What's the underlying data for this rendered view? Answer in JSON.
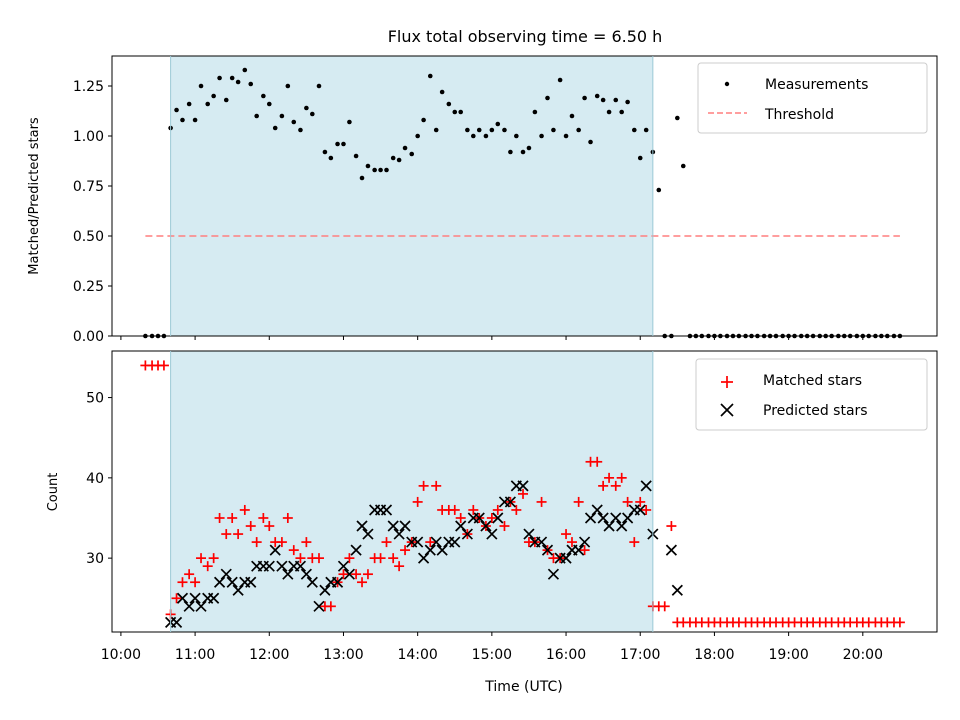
{
  "chart_data": [
    {
      "type": "scatter",
      "title": "Flux total observing time = 6.50 h",
      "ylabel": "Matched/Predicted stars",
      "ylim": [
        0,
        1.4
      ],
      "xlim": [
        9.88,
        21.0
      ],
      "yticks": [
        0.0,
        0.25,
        0.5,
        0.75,
        1.0,
        1.25
      ],
      "ytick_labels": [
        "0.00",
        "0.25",
        "0.50",
        "0.75",
        "1.00",
        "1.25"
      ],
      "legend_position": "top-right",
      "shaded_interval": [
        10.67,
        17.17
      ],
      "shade_color": "#add8e6",
      "series": [
        {
          "name": "Measurements",
          "marker": "dot",
          "color": "#000000",
          "x": [
            10.33,
            10.42,
            10.5,
            10.58,
            10.67,
            10.75,
            10.83,
            10.92,
            11.0,
            11.08,
            11.17,
            11.25,
            11.33,
            11.42,
            11.5,
            11.58,
            11.67,
            11.75,
            11.83,
            11.92,
            12.0,
            12.08,
            12.17,
            12.25,
            12.33,
            12.42,
            12.5,
            12.58,
            12.67,
            12.75,
            12.83,
            12.92,
            13.0,
            13.08,
            13.17,
            13.25,
            13.33,
            13.42,
            13.5,
            13.58,
            13.67,
            13.75,
            13.83,
            13.92,
            14.0,
            14.08,
            14.17,
            14.25,
            14.33,
            14.42,
            14.5,
            14.58,
            14.67,
            14.75,
            14.83,
            14.92,
            15.0,
            15.08,
            15.17,
            15.25,
            15.33,
            15.42,
            15.5,
            15.58,
            15.67,
            15.75,
            15.83,
            15.92,
            16.0,
            16.08,
            16.17,
            16.25,
            16.33,
            16.42,
            16.5,
            16.58,
            16.67,
            16.75,
            16.83,
            16.92,
            17.0,
            17.08,
            17.17,
            17.25,
            17.33,
            17.42,
            17.5,
            17.58,
            17.67,
            17.75,
            17.83,
            17.92,
            18.0,
            18.08,
            18.17,
            18.25,
            18.33,
            18.42,
            18.5,
            18.58,
            18.67,
            18.75,
            18.83,
            18.92,
            19.0,
            19.08,
            19.17,
            19.25,
            19.33,
            19.42,
            19.5,
            19.58,
            19.67,
            19.75,
            19.83,
            19.92,
            20.0,
            20.08,
            20.17,
            20.25,
            20.33,
            20.42,
            20.5
          ],
          "y": [
            0,
            0,
            0,
            0,
            1.04,
            1.13,
            1.08,
            1.16,
            1.08,
            1.25,
            1.16,
            1.2,
            1.29,
            1.18,
            1.29,
            1.27,
            1.33,
            1.26,
            1.1,
            1.2,
            1.16,
            1.04,
            1.1,
            1.25,
            1.07,
            1.03,
            1.14,
            1.11,
            1.25,
            0.92,
            0.89,
            0.96,
            0.96,
            1.07,
            0.9,
            0.79,
            0.85,
            0.83,
            0.83,
            0.83,
            0.89,
            0.88,
            0.94,
            0.91,
            1.0,
            1.08,
            1.3,
            1.03,
            1.22,
            1.16,
            1.12,
            1.12,
            1.03,
            1.0,
            1.03,
            1.0,
            1.03,
            1.06,
            1.03,
            0.92,
            1.0,
            0.92,
            0.94,
            1.12,
            1.0,
            1.19,
            1.03,
            1.28,
            1.0,
            1.1,
            1.03,
            1.19,
            0.97,
            1.2,
            1.18,
            1.12,
            1.18,
            1.12,
            1.17,
            1.03,
            0.89,
            1.03,
            0.92,
            0.73,
            0,
            0,
            1.09,
            0.85,
            0,
            0,
            0,
            0,
            0,
            0,
            0,
            0,
            0,
            0,
            0,
            0,
            0,
            0,
            0,
            0,
            0,
            0,
            0,
            0,
            0,
            0,
            0,
            0,
            0,
            0,
            0,
            0,
            0,
            0,
            0,
            0,
            0,
            0,
            0
          ]
        },
        {
          "name": "Threshold",
          "type": "line",
          "dash": "dashed",
          "color": "#ff7f7f",
          "x": [
            10.33,
            20.5
          ],
          "y": [
            0.5,
            0.5
          ]
        }
      ]
    },
    {
      "type": "scatter",
      "ylabel": "Count",
      "xlabel": "Time (UTC)",
      "ylim": [
        20.8,
        55.8
      ],
      "xlim": [
        9.88,
        21.0
      ],
      "yticks": [
        30,
        40,
        50
      ],
      "ytick_labels": [
        "30",
        "40",
        "50"
      ],
      "xticks": [
        10,
        11,
        12,
        13,
        14,
        15,
        16,
        17,
        18,
        19,
        20
      ],
      "xtick_labels": [
        "10:00",
        "11:00",
        "12:00",
        "13:00",
        "14:00",
        "15:00",
        "16:00",
        "17:00",
        "18:00",
        "19:00",
        "20:00"
      ],
      "legend_position": "top-right",
      "shaded_interval": [
        10.67,
        17.17
      ],
      "shade_color": "#add8e6",
      "series": [
        {
          "name": "Matched stars",
          "marker": "plus",
          "color": "#ff0000",
          "x": [
            10.33,
            10.42,
            10.5,
            10.58,
            10.67,
            10.75,
            10.83,
            10.92,
            11.0,
            11.08,
            11.17,
            11.25,
            11.33,
            11.42,
            11.5,
            11.58,
            11.67,
            11.75,
            11.83,
            11.92,
            12.0,
            12.08,
            12.17,
            12.25,
            12.33,
            12.42,
            12.5,
            12.58,
            12.67,
            12.75,
            12.83,
            12.92,
            13.0,
            13.08,
            13.17,
            13.25,
            13.33,
            13.42,
            13.5,
            13.58,
            13.67,
            13.75,
            13.83,
            13.92,
            14.0,
            14.08,
            14.17,
            14.25,
            14.33,
            14.42,
            14.5,
            14.58,
            14.67,
            14.75,
            14.83,
            14.92,
            15.0,
            15.08,
            15.17,
            15.25,
            15.33,
            15.42,
            15.5,
            15.58,
            15.67,
            15.75,
            15.83,
            15.92,
            16.0,
            16.08,
            16.17,
            16.25,
            16.33,
            16.42,
            16.5,
            16.58,
            16.67,
            16.75,
            16.83,
            16.92,
            17.0,
            17.08,
            17.17,
            17.25,
            17.33,
            17.42,
            17.5,
            17.58,
            17.67,
            17.75,
            17.83,
            17.92,
            18.0,
            18.08,
            18.17,
            18.25,
            18.33,
            18.42,
            18.5,
            18.58,
            18.67,
            18.75,
            18.83,
            18.92,
            19.0,
            19.08,
            19.17,
            19.25,
            19.33,
            19.42,
            19.5,
            19.58,
            19.67,
            19.75,
            19.83,
            19.92,
            20.0,
            20.08,
            20.17,
            20.25,
            20.33,
            20.42,
            20.5
          ],
          "y": [
            54,
            54,
            54,
            54,
            23,
            25,
            27,
            28,
            27,
            30,
            29,
            30,
            35,
            33,
            35,
            33,
            36,
            34,
            32,
            35,
            34,
            32,
            32,
            35,
            31,
            30,
            32,
            30,
            30,
            24,
            24,
            27,
            28,
            30,
            28,
            27,
            28,
            30,
            30,
            32,
            30,
            29,
            31,
            32,
            37,
            39,
            32,
            39,
            36,
            36,
            36,
            35,
            33,
            36,
            35,
            34,
            35,
            36,
            34,
            37,
            36,
            38,
            32,
            32,
            37,
            31,
            30,
            30,
            33,
            32,
            37,
            31,
            42,
            42,
            39,
            40,
            39,
            40,
            37,
            32,
            37,
            36,
            24,
            24,
            24,
            34,
            22,
            22,
            22,
            22,
            22,
            22,
            22,
            22,
            22,
            22,
            22,
            22,
            22,
            22,
            22,
            22,
            22,
            22,
            22,
            22,
            22,
            22,
            22,
            22,
            22,
            22,
            22,
            22,
            22,
            22,
            22,
            22,
            22,
            22,
            22,
            22,
            22
          ]
        },
        {
          "name": "Predicted stars",
          "marker": "x",
          "color": "#000000",
          "x": [
            10.67,
            10.75,
            10.83,
            10.92,
            11.0,
            11.08,
            11.17,
            11.25,
            11.33,
            11.42,
            11.5,
            11.58,
            11.67,
            11.75,
            11.83,
            11.92,
            12.0,
            12.08,
            12.17,
            12.25,
            12.33,
            12.42,
            12.5,
            12.58,
            12.67,
            12.75,
            12.83,
            12.92,
            13.0,
            13.08,
            13.17,
            13.25,
            13.33,
            13.42,
            13.5,
            13.58,
            13.67,
            13.75,
            13.83,
            13.92,
            14.0,
            14.08,
            14.17,
            14.25,
            14.33,
            14.42,
            14.5,
            14.58,
            14.67,
            14.75,
            14.83,
            14.92,
            15.0,
            15.08,
            15.17,
            15.25,
            15.33,
            15.42,
            15.5,
            15.58,
            15.67,
            15.75,
            15.83,
            15.92,
            16.0,
            16.08,
            16.17,
            16.25,
            16.33,
            16.42,
            16.5,
            16.58,
            16.67,
            16.75,
            16.83,
            16.92,
            17.0,
            17.08,
            17.17,
            17.42,
            17.5
          ],
          "y": [
            22,
            22,
            25,
            24,
            25,
            24,
            25,
            25,
            27,
            28,
            27,
            26,
            27,
            27,
            29,
            29,
            29,
            31,
            29,
            28,
            29,
            29,
            28,
            27,
            24,
            26,
            27,
            27,
            29,
            28,
            31,
            34,
            33,
            36,
            36,
            36,
            34,
            33,
            34,
            32,
            32,
            30,
            31,
            32,
            31,
            32,
            32,
            34,
            33,
            35,
            35,
            34,
            33,
            35,
            37,
            37,
            39,
            39,
            33,
            32,
            32,
            31,
            28,
            30,
            30,
            31,
            31,
            32,
            35,
            36,
            35,
            34,
            35,
            34,
            35,
            36,
            36,
            39,
            33,
            31,
            26
          ]
        }
      ]
    }
  ]
}
